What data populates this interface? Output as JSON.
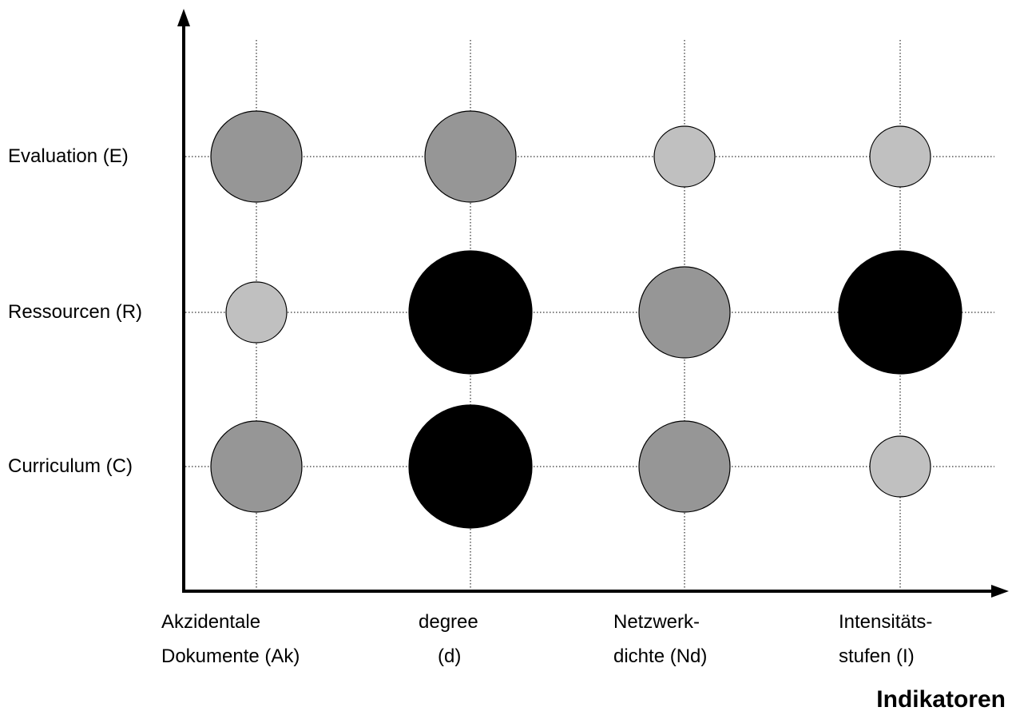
{
  "chart_data": {
    "type": "bubble-matrix",
    "xlabel": "Indikatoren",
    "ylabel": "",
    "categories_x": [
      {
        "line1": "Akzidentale",
        "line2": "Dokumente (Ak)"
      },
      {
        "line1": "degree",
        "line2": "(d)"
      },
      {
        "line1": "Netzwerk-",
        "line2": "dichte (Nd)"
      },
      {
        "line1": "Intensitäts-",
        "line2": "stufen (I)"
      }
    ],
    "categories_y": [
      "Evaluation (E)",
      "Ressourcen (R)",
      "Curriculum (C)"
    ],
    "levels": [
      {
        "level": 1,
        "color": "#c0c0c0"
      },
      {
        "level": 2,
        "color": "#969696"
      },
      {
        "level": 3,
        "color": "#000000"
      }
    ],
    "values": [
      {
        "y": "Evaluation (E)",
        "x": "Akzidentale Dokumente (Ak)",
        "level": 2
      },
      {
        "y": "Evaluation (E)",
        "x": "degree (d)",
        "level": 2
      },
      {
        "y": "Evaluation (E)",
        "x": "Netzwerkdichte (Nd)",
        "level": 1
      },
      {
        "y": "Evaluation (E)",
        "x": "Intensitätsstufen (I)",
        "level": 1
      },
      {
        "y": "Ressourcen (R)",
        "x": "Akzidentale Dokumente (Ak)",
        "level": 1
      },
      {
        "y": "Ressourcen (R)",
        "x": "degree (d)",
        "level": 3
      },
      {
        "y": "Ressourcen (R)",
        "x": "Netzwerkdichte (Nd)",
        "level": 2
      },
      {
        "y": "Ressourcen (R)",
        "x": "Intensitätsstufen (I)",
        "level": 3
      },
      {
        "y": "Curriculum (C)",
        "x": "Akzidentale Dokumente (Ak)",
        "level": 2
      },
      {
        "y": "Curriculum (C)",
        "x": "degree (d)",
        "level": 3
      },
      {
        "y": "Curriculum (C)",
        "x": "Netzwerkdichte (Nd)",
        "level": 2
      },
      {
        "y": "Curriculum (C)",
        "x": "Intensitätsstufen (I)",
        "level": 1
      }
    ],
    "grid": true
  }
}
